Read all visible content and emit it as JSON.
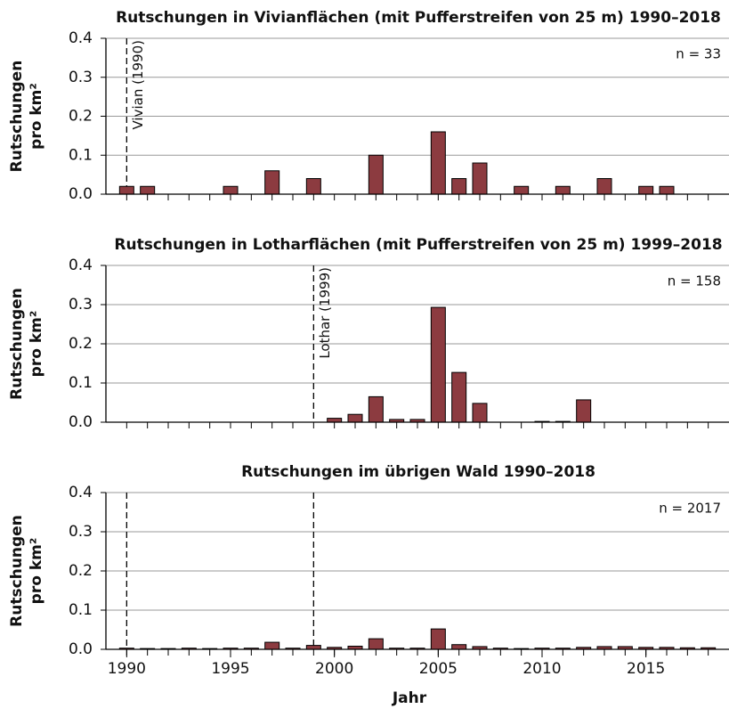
{
  "chart_data": [
    {
      "type": "bar",
      "title": "Rutschungen in Vivianflächen (mit Pufferstreifen von 25 m) 1990–2018",
      "ylabel": [
        "Rutschungen",
        "pro km²"
      ],
      "annotation": "n = 33",
      "color": "#8c3b40",
      "x": [
        1990,
        1991,
        1992,
        1993,
        1994,
        1995,
        1996,
        1997,
        1998,
        1999,
        2000,
        2001,
        2002,
        2003,
        2004,
        2005,
        2006,
        2007,
        2008,
        2009,
        2010,
        2011,
        2012,
        2013,
        2014,
        2015,
        2016,
        2017,
        2018
      ],
      "values": [
        0.02,
        0.02,
        0,
        0,
        0,
        0.02,
        0,
        0.06,
        0,
        0.04,
        0,
        0,
        0.1,
        0,
        0,
        0.16,
        0.04,
        0.08,
        0,
        0.02,
        0,
        0.02,
        0,
        0.04,
        0,
        0.02,
        0.02,
        0,
        0
      ],
      "xlim": [
        1989,
        2019
      ],
      "minor_xticks": [
        1990,
        1991,
        1992,
        1993,
        1994,
        1995,
        1996,
        1997,
        1998,
        1999,
        2000,
        2001,
        2002,
        2003,
        2004,
        2005,
        2006,
        2007,
        2008,
        2009,
        2010,
        2011,
        2012,
        2013,
        2014,
        2015,
        2016,
        2017,
        2018
      ],
      "ylim": [
        0,
        0.4
      ],
      "yticks": [
        {
          "value": 0,
          "label": "0.0"
        },
        0.1,
        0.2,
        0.3,
        0.4
      ],
      "grid": true,
      "events": [
        {
          "x": 1990,
          "label": "Vivian (1990)"
        }
      ]
    },
    {
      "type": "bar",
      "title": "Rutschungen in Lotharflächen (mit Pufferstreifen von 25 m) 1999–2018",
      "ylabel": [
        "Rutschungen",
        "pro km²"
      ],
      "annotation": "n = 158",
      "color": "#8c3b40",
      "x": [
        1999,
        2000,
        2001,
        2002,
        2003,
        2004,
        2005,
        2006,
        2007,
        2008,
        2009,
        2010,
        2011,
        2012,
        2013,
        2014,
        2015,
        2016,
        2017,
        2018
      ],
      "values": [
        0,
        0.01,
        0.02,
        0.065,
        0.007,
        0.007,
        0.293,
        0.127,
        0.048,
        0,
        0,
        0.002,
        0.002,
        0.057,
        0,
        0,
        0,
        0,
        0,
        0
      ],
      "xlim": [
        1989,
        2019
      ],
      "minor_xticks": [
        1990,
        1991,
        1992,
        1993,
        1994,
        1995,
        1996,
        1997,
        1998,
        1999,
        2000,
        2001,
        2002,
        2003,
        2004,
        2005,
        2006,
        2007,
        2008,
        2009,
        2010,
        2011,
        2012,
        2013,
        2014,
        2015,
        2016,
        2017,
        2018
      ],
      "ylim": [
        0,
        0.4
      ],
      "yticks": [
        {
          "value": 0,
          "label": "0.0"
        },
        0.1,
        0.2,
        0.3,
        0.4
      ],
      "grid": true,
      "events": [
        {
          "x": 1999,
          "label": "Lothar (1999)"
        }
      ]
    },
    {
      "type": "bar",
      "title": "Rutschungen im übrigen Wald 1990–2018",
      "ylabel": [
        "Rutschungen",
        "pro km²"
      ],
      "annotation": "n = 2017",
      "color": "#8c3b40",
      "xlabel": "Jahr",
      "x": [
        1990,
        1991,
        1992,
        1993,
        1994,
        1995,
        1996,
        1997,
        1998,
        1999,
        2000,
        2001,
        2002,
        2003,
        2004,
        2005,
        2006,
        2007,
        2008,
        2009,
        2010,
        2011,
        2012,
        2013,
        2014,
        2015,
        2016,
        2017,
        2018
      ],
      "values": [
        0.003,
        0.002,
        0.002,
        0.003,
        0.002,
        0.003,
        0.003,
        0.018,
        0.003,
        0.01,
        0.005,
        0.008,
        0.027,
        0.003,
        0.003,
        0.052,
        0.012,
        0.007,
        0.003,
        0.002,
        0.003,
        0.003,
        0.005,
        0.007,
        0.007,
        0.005,
        0.005,
        0.004,
        0.004
      ],
      "xlim": [
        1989,
        2019
      ],
      "xticks": [
        1990,
        1995,
        2000,
        2005,
        2010,
        2015
      ],
      "minor_xticks": [
        1990,
        1991,
        1992,
        1993,
        1994,
        1995,
        1996,
        1997,
        1998,
        1999,
        2000,
        2001,
        2002,
        2003,
        2004,
        2005,
        2006,
        2007,
        2008,
        2009,
        2010,
        2011,
        2012,
        2013,
        2014,
        2015,
        2016,
        2017,
        2018
      ],
      "ylim": [
        0,
        0.4
      ],
      "yticks": [
        {
          "value": 0,
          "label": "0.0"
        },
        0.1,
        0.2,
        0.3,
        0.4
      ],
      "grid": true,
      "events": [
        {
          "x": 1990
        },
        {
          "x": 1999
        }
      ]
    }
  ]
}
